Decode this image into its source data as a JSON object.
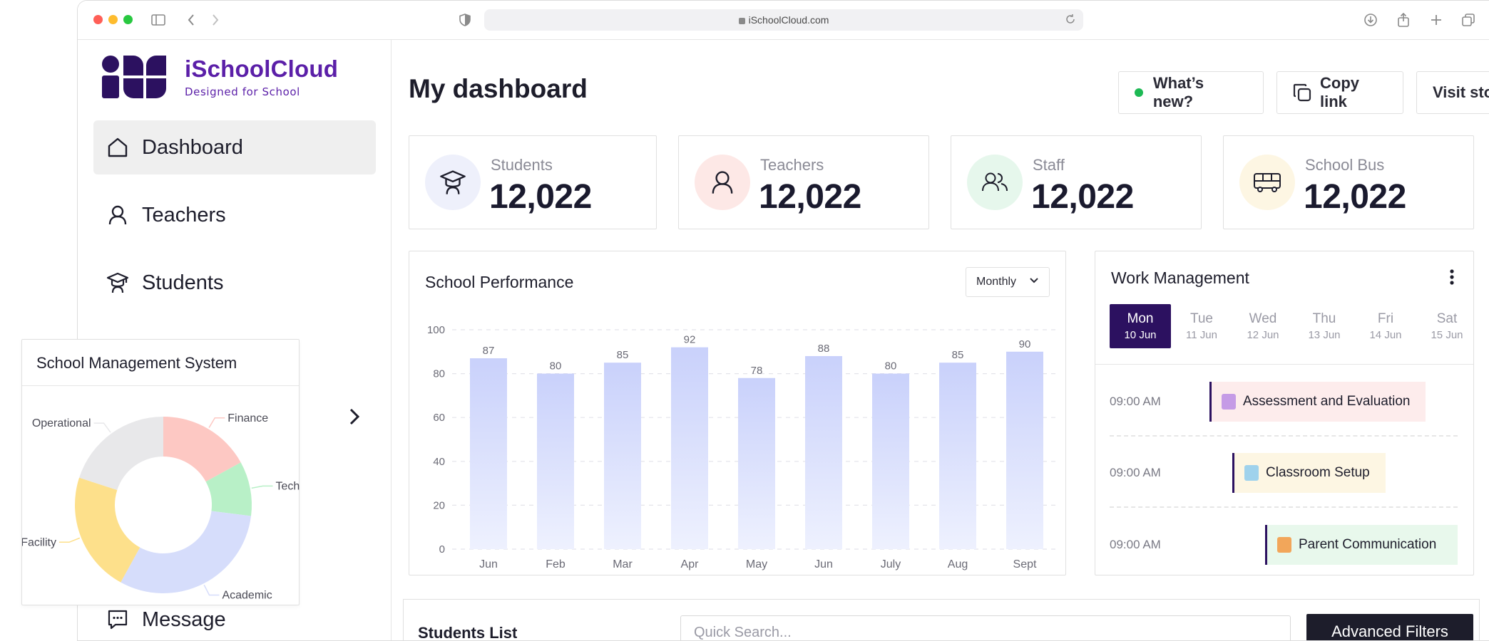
{
  "browser": {
    "url": "iSchoolCloud.com"
  },
  "brand": {
    "name": "iSchoolCloud",
    "tagline": "Designed for School",
    "color": "#5b1fa8"
  },
  "sidebar": {
    "items": [
      {
        "label": "Dashboard",
        "icon": "home-icon",
        "active": true
      },
      {
        "label": "Teachers",
        "icon": "user-icon",
        "active": false
      },
      {
        "label": "Students",
        "icon": "graduation-cap-icon",
        "active": false
      },
      {
        "label": "Message",
        "icon": "message-icon",
        "active": false
      }
    ]
  },
  "header": {
    "title": "My dashboard",
    "whats_new": "What’s new?",
    "copy_link": "Copy link",
    "visit_store": "Visit store"
  },
  "stats": [
    {
      "label": "Students",
      "value": "12,022",
      "icon": "graduation-cap-icon",
      "bg": "#eef0fb"
    },
    {
      "label": "Teachers",
      "value": "12,022",
      "icon": "user-icon",
      "bg": "#fde8e6"
    },
    {
      "label": "Staff",
      "value": "12,022",
      "icon": "users-icon",
      "bg": "#e6f7ec"
    },
    {
      "label": "School Bus",
      "value": "12,022",
      "icon": "bus-icon",
      "bg": "#fdf6e3"
    }
  ],
  "performance": {
    "title": "School Performance",
    "period": "Monthly"
  },
  "chart_data": [
    {
      "type": "bar",
      "title": "School Performance",
      "categories": [
        "Jun",
        "Feb",
        "Mar",
        "Apr",
        "May",
        "Jun",
        "July",
        "Aug",
        "Sept"
      ],
      "values": [
        87,
        80,
        85,
        92,
        78,
        88,
        80,
        85,
        90
      ],
      "ylim": [
        0,
        100
      ],
      "yticks": [
        0,
        20,
        40,
        60,
        80,
        100
      ],
      "grid": true,
      "color": "#c9d1fb"
    },
    {
      "type": "pie",
      "title": "School Management System",
      "categories": [
        "Finance",
        "Tech",
        "Academic",
        "Facility",
        "Operational"
      ],
      "values": [
        17,
        10,
        31,
        22,
        20
      ],
      "colors": [
        "#fdc8c3",
        "#b8f0c7",
        "#d6ddfb",
        "#fde08b",
        "#e8e8ea"
      ]
    }
  ],
  "work": {
    "title": "Work Management",
    "days": [
      {
        "name": "Mon",
        "date": "10 Jun",
        "active": true
      },
      {
        "name": "Tue",
        "date": "11 Jun",
        "active": false
      },
      {
        "name": "Wed",
        "date": "12 Jun",
        "active": false
      },
      {
        "name": "Thu",
        "date": "13 Jun",
        "active": false
      },
      {
        "name": "Fri",
        "date": "14 Jun",
        "active": false
      },
      {
        "name": "Sat",
        "date": "15 Jun",
        "active": false
      }
    ],
    "tasks": [
      {
        "time": "09:00 AM",
        "title": "Assessment and Evaluation",
        "bg": "#fdecec"
      },
      {
        "time": "09:00 AM",
        "title": "Classroom Setup",
        "bg": "#fdf6e3"
      },
      {
        "time": "09:00 AM",
        "title": "Parent Communication",
        "bg": "#e8f8ec"
      }
    ]
  },
  "students_list": {
    "title": "Students List",
    "search_placeholder": "Quick Search...",
    "filters_label": "Advanced Filters"
  },
  "management": {
    "title": "School Management System"
  }
}
